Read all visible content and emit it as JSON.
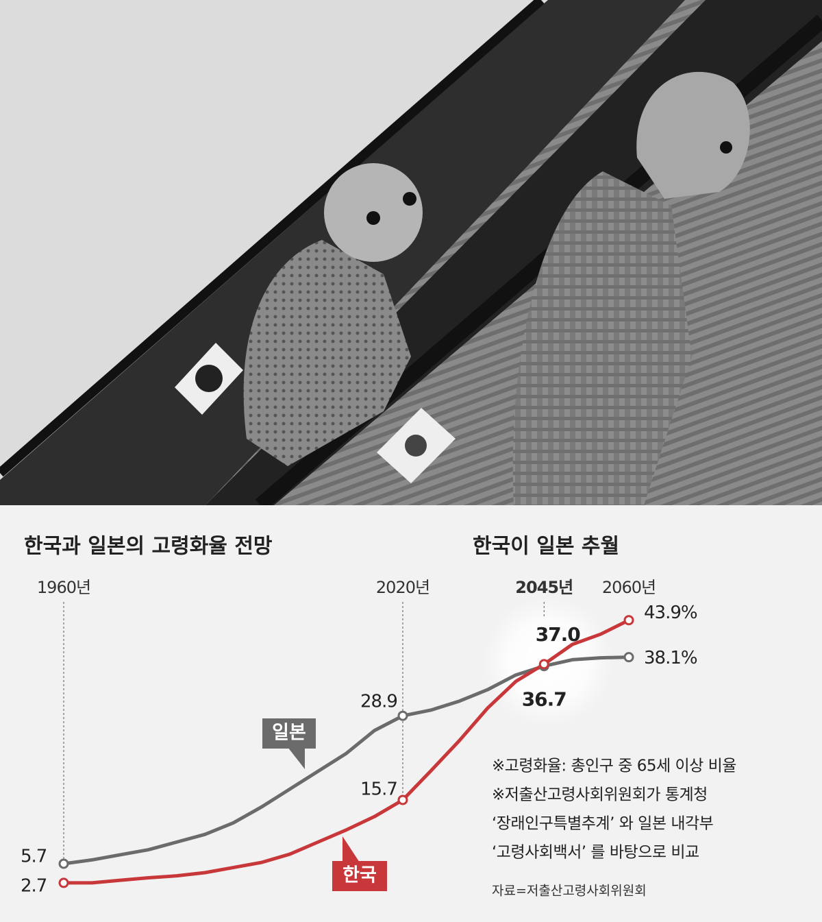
{
  "chart_data": {
    "type": "line",
    "title": "한국과 일본의 고령화율 전망",
    "subtitle": "한국이 일본 추월",
    "x": [
      1960,
      1965,
      1970,
      1975,
      1980,
      1985,
      1990,
      1995,
      2000,
      2005,
      2010,
      2015,
      2020,
      2025,
      2030,
      2035,
      2040,
      2045,
      2050,
      2055,
      2060
    ],
    "xlim": [
      1960,
      2060
    ],
    "xticks": [
      {
        "value": 1960,
        "label": "1960년"
      },
      {
        "value": 2020,
        "label": "2020년"
      },
      {
        "value": 2045,
        "label": "2045년"
      },
      {
        "value": 2060,
        "label": "2060년"
      }
    ],
    "ylim": [
      0,
      50
    ],
    "series": [
      {
        "name": "일본",
        "color": "#6b6b6b",
        "values": [
          5.7,
          6.3,
          7.1,
          7.9,
          9.1,
          10.3,
          12.1,
          14.6,
          17.4,
          20.2,
          23.0,
          26.6,
          28.9,
          29.8,
          31.2,
          33.0,
          35.3,
          36.7,
          37.7,
          38.0,
          38.1
        ],
        "value_labels": [
          "5.7",
          null,
          null,
          null,
          null,
          null,
          null,
          null,
          null,
          null,
          null,
          null,
          "28.9",
          null,
          null,
          null,
          null,
          "36.7",
          null,
          null,
          "38.1%"
        ]
      },
      {
        "name": "한국",
        "color": "#c8373a",
        "values": [
          2.7,
          2.7,
          3.1,
          3.5,
          3.8,
          4.3,
          5.1,
          5.9,
          7.2,
          9.1,
          11.0,
          13.1,
          15.7,
          20.3,
          25.0,
          30.1,
          34.3,
          37.0,
          40.1,
          41.7,
          43.9
        ],
        "value_labels": [
          "2.7",
          null,
          null,
          null,
          null,
          null,
          null,
          null,
          null,
          null,
          null,
          null,
          "15.7",
          null,
          null,
          null,
          null,
          "37.0",
          null,
          null,
          "43.9%"
        ]
      }
    ],
    "notes": [
      "※고령화율: 총인구 중 65세 이상 비율",
      "※저출산고령사회위원회가 통계청",
      "‘장래인구특별추계’ 와 일본 내각부",
      "‘고령사회백서’ 를 바탕으로 비교"
    ],
    "source": "자료=저출산고령사회위원회"
  }
}
